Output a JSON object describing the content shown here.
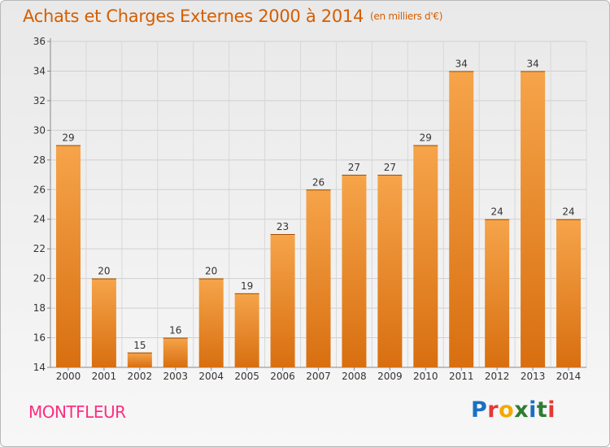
{
  "title": "Achats et Charges Externes 2000 à 2014",
  "subtitle": "(en milliers d'€)",
  "place": "MONTFLEUR",
  "logo": "Proxiti",
  "colors": {
    "title": "#d55e00",
    "place": "#ff2d7f",
    "bar_light": "#f6a44a",
    "bar_dark": "#d86f10",
    "logo": [
      "#1a6fc4",
      "#e53935",
      "#f2a900",
      "#2e7d32",
      "#1a6fc4",
      "#2e7d32",
      "#e53935"
    ]
  },
  "chart_data": {
    "type": "bar",
    "title": "Achats et Charges Externes 2000 à 2014",
    "subtitle": "(en milliers d'€)",
    "categories": [
      "2000",
      "2001",
      "2002",
      "2003",
      "2004",
      "2005",
      "2006",
      "2007",
      "2008",
      "2009",
      "2010",
      "2011",
      "2012",
      "2013",
      "2014"
    ],
    "values": [
      29,
      20,
      15,
      16,
      20,
      19,
      23,
      26,
      27,
      27,
      29,
      34,
      24,
      34,
      24
    ],
    "ylim": [
      14,
      36
    ],
    "yticks": [
      14,
      16,
      18,
      20,
      22,
      24,
      26,
      28,
      30,
      32,
      34,
      36
    ],
    "grid": true,
    "data_labels": true,
    "legend": "none"
  }
}
